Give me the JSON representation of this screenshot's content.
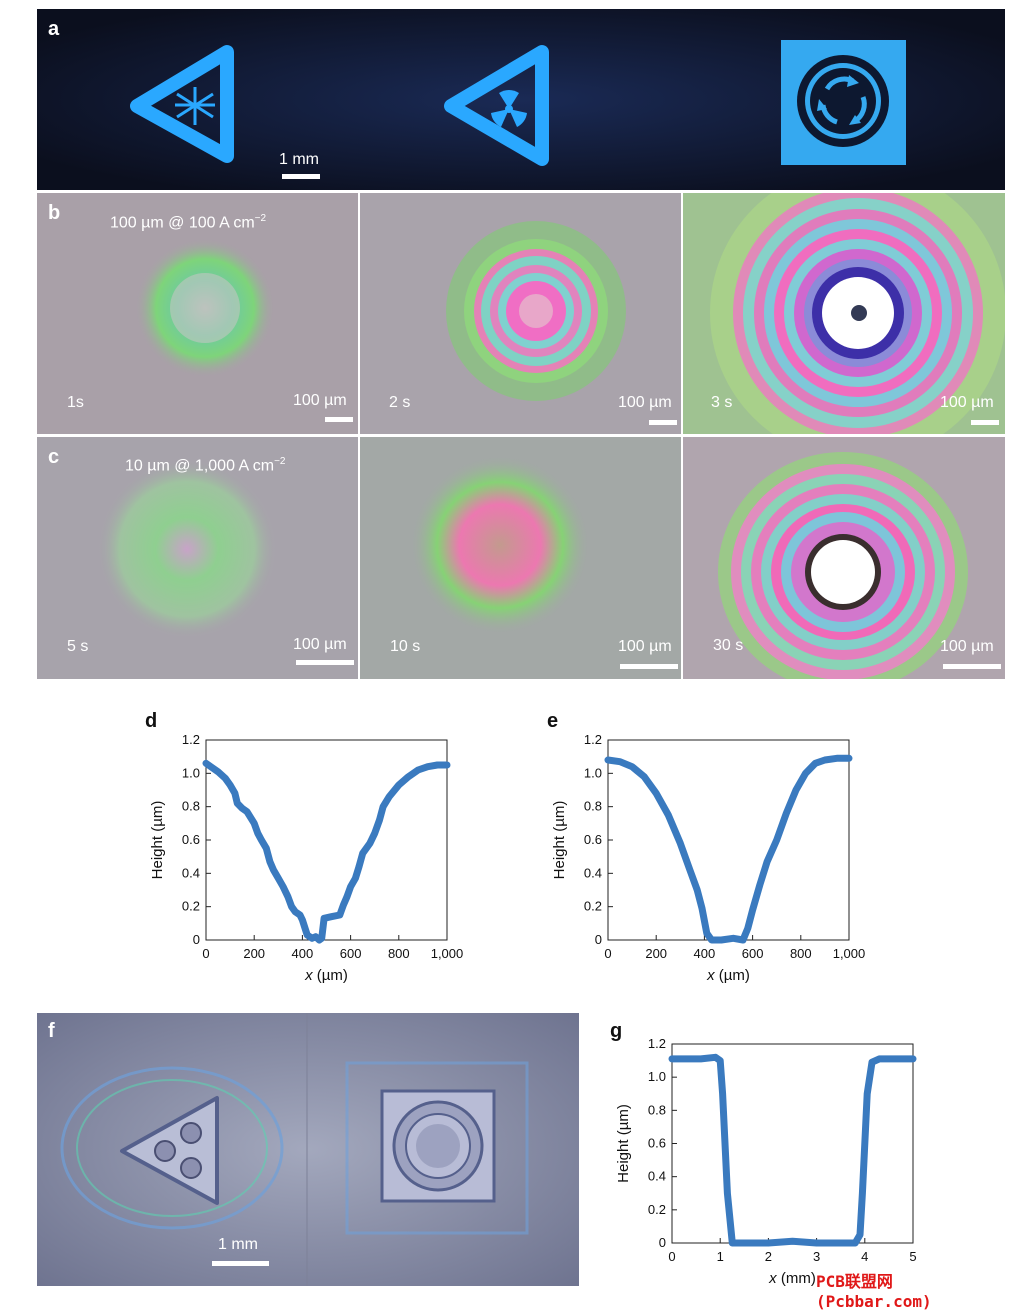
{
  "panel_a": {
    "letter": "a",
    "scale_label": "1 mm",
    "icons": [
      "snowflake-warning-sign",
      "radiation-warning-sign",
      "recycle-sign"
    ]
  },
  "panel_b": {
    "letter": "b",
    "condition": "100 µm @ 100 A cm",
    "condition_exp": "−2",
    "times": [
      "1s",
      "2 s",
      "3 s"
    ],
    "scale_label": "100 µm"
  },
  "panel_c": {
    "letter": "c",
    "condition": "10 µm @ 1,000 A cm",
    "condition_exp": "−2",
    "times": [
      "5 s",
      "10 s",
      "30 s"
    ],
    "scale_label": "100 µm"
  },
  "panel_d": {
    "letter": "d"
  },
  "panel_e": {
    "letter": "e"
  },
  "panel_f": {
    "letter": "f",
    "scale_label": "1 mm"
  },
  "panel_g": {
    "letter": "g"
  },
  "watermark": "PCB联盟网 (Pcbbar.com)",
  "chart_data": [
    {
      "id": "d",
      "type": "line",
      "xlabel": "x (µm)",
      "ylabel": "Height (µm)",
      "xlim": [
        0,
        1000
      ],
      "ylim": [
        0,
        1.2
      ],
      "xticks": [
        "0",
        "200",
        "400",
        "600",
        "800",
        "1,000"
      ],
      "yticks": [
        "0",
        "0.2",
        "0.4",
        "0.6",
        "0.8",
        "1.0",
        "1.2"
      ],
      "color": "#3a7abf",
      "x": [
        0,
        20,
        50,
        80,
        100,
        120,
        130,
        150,
        170,
        200,
        215,
        230,
        250,
        265,
        280,
        300,
        320,
        340,
        355,
        370,
        390,
        400,
        420,
        440,
        455,
        470,
        480,
        490,
        520,
        555,
        570,
        585,
        600,
        620,
        635,
        650,
        680,
        700,
        720,
        735,
        760,
        800,
        840,
        880,
        920,
        960,
        1000
      ],
      "y": [
        1.06,
        1.04,
        1.01,
        0.97,
        0.93,
        0.88,
        0.82,
        0.79,
        0.77,
        0.7,
        0.64,
        0.6,
        0.55,
        0.47,
        0.42,
        0.37,
        0.32,
        0.26,
        0.2,
        0.17,
        0.15,
        0.12,
        0.03,
        0.01,
        0.02,
        0.0,
        0.01,
        0.13,
        0.14,
        0.15,
        0.21,
        0.26,
        0.32,
        0.37,
        0.44,
        0.52,
        0.58,
        0.64,
        0.72,
        0.8,
        0.86,
        0.93,
        0.98,
        1.02,
        1.04,
        1.05,
        1.05
      ]
    },
    {
      "id": "e",
      "type": "line",
      "xlabel": "x (µm)",
      "ylabel": "Height (µm)",
      "xlim": [
        0,
        1000
      ],
      "ylim": [
        0,
        1.2
      ],
      "xticks": [
        "0",
        "200",
        "400",
        "600",
        "800",
        "1,000"
      ],
      "yticks": [
        "0",
        "0.2",
        "0.4",
        "0.6",
        "0.8",
        "1.0",
        "1.2"
      ],
      "color": "#3a7abf",
      "x": [
        0,
        50,
        100,
        150,
        200,
        250,
        300,
        340,
        370,
        390,
        410,
        430,
        470,
        520,
        560,
        580,
        600,
        630,
        660,
        700,
        740,
        780,
        820,
        860,
        900,
        950,
        1000
      ],
      "y": [
        1.08,
        1.07,
        1.04,
        0.98,
        0.88,
        0.75,
        0.58,
        0.42,
        0.3,
        0.19,
        0.04,
        0.0,
        0.0,
        0.01,
        0.0,
        0.07,
        0.18,
        0.33,
        0.47,
        0.6,
        0.76,
        0.9,
        1.0,
        1.06,
        1.08,
        1.09,
        1.09
      ]
    },
    {
      "id": "g",
      "type": "line",
      "xlabel": "x (mm)",
      "ylabel": "Height (µm)",
      "xlim": [
        0,
        5
      ],
      "ylim": [
        0,
        1.2
      ],
      "xticks": [
        "0",
        "1",
        "2",
        "3",
        "4",
        "5"
      ],
      "yticks": [
        "0",
        "0.2",
        "0.4",
        "0.6",
        "0.8",
        "1.0",
        "1.2"
      ],
      "color": "#3a7abf",
      "x": [
        0,
        0.3,
        0.6,
        0.9,
        1.0,
        1.05,
        1.15,
        1.25,
        1.5,
        2.0,
        2.5,
        3.0,
        3.5,
        3.8,
        3.9,
        3.95,
        4.05,
        4.15,
        4.3,
        4.6,
        5.0
      ],
      "y": [
        1.11,
        1.11,
        1.11,
        1.12,
        1.1,
        0.9,
        0.3,
        0.0,
        0.0,
        0.0,
        0.01,
        0.0,
        0.0,
        0.0,
        0.05,
        0.3,
        0.9,
        1.09,
        1.11,
        1.11,
        1.11
      ]
    }
  ]
}
